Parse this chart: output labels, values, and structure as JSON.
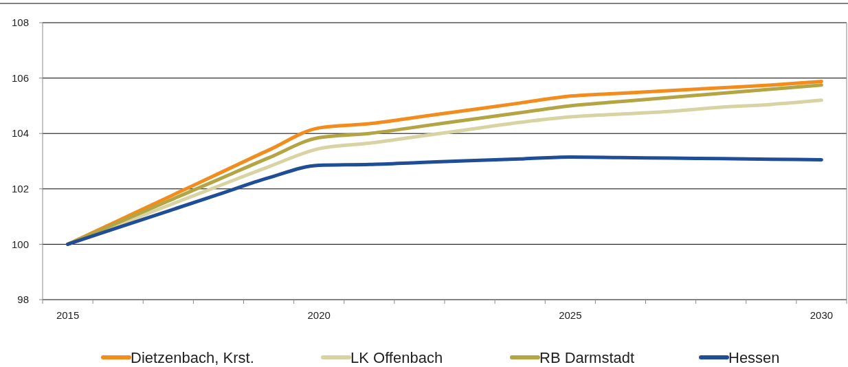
{
  "chart_data": {
    "type": "line",
    "categories": [
      "2015",
      null,
      null,
      null,
      null,
      "2020",
      null,
      null,
      null,
      null,
      "2025",
      null,
      null,
      null,
      null,
      "2030"
    ],
    "series": [
      {
        "name": "Dietzenbach, Krst.",
        "color": "#f28c1c",
        "values": [
          100,
          100.85,
          101.7,
          102.55,
          103.4,
          104.2,
          104.35,
          104.6,
          104.85,
          105.1,
          105.35,
          105.45,
          105.55,
          105.65,
          105.75,
          105.88
        ]
      },
      {
        "name": "LK Offenbach",
        "color": "#d8d3a3",
        "values": [
          100,
          100.7,
          101.4,
          102.1,
          102.8,
          103.45,
          103.65,
          103.9,
          104.15,
          104.4,
          104.6,
          104.7,
          104.8,
          104.95,
          105.05,
          105.2
        ]
      },
      {
        "name": "RB Darmstadt",
        "color": "#b3a444",
        "values": [
          100,
          100.78,
          101.56,
          102.34,
          103.12,
          103.85,
          104.0,
          104.25,
          104.5,
          104.75,
          105.0,
          105.15,
          105.3,
          105.45,
          105.6,
          105.75
        ]
      },
      {
        "name": "Hessen",
        "color": "#1f4e96",
        "values": [
          100,
          100.6,
          101.2,
          101.8,
          102.4,
          102.85,
          102.88,
          102.95,
          103.02,
          103.08,
          103.15,
          103.13,
          103.11,
          103.09,
          103.07,
          103.05
        ]
      }
    ],
    "ylim": [
      98,
      108
    ],
    "yticks": [
      98,
      100,
      102,
      104,
      106,
      108
    ],
    "grid": "y",
    "legend": "bottom",
    "marker": "none",
    "line_style": "solid"
  }
}
